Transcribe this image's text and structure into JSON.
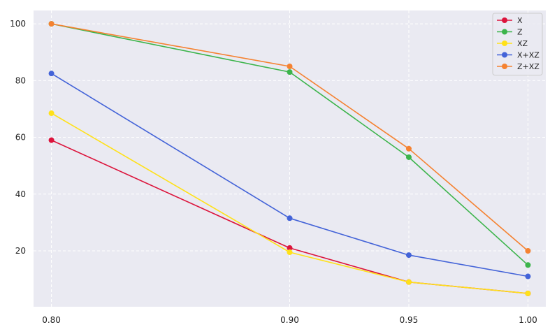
{
  "chart_data": {
    "type": "line",
    "title": "",
    "xlabel": "",
    "ylabel": "",
    "x": [
      0.8,
      0.9,
      0.95,
      1.0
    ],
    "x_tick_labels": [
      "0.80",
      "0.90",
      "0.95",
      "1.00"
    ],
    "xlim": [
      0.7925,
      1.0075
    ],
    "y_ticks": [
      20,
      40,
      60,
      80,
      100
    ],
    "y_tick_labels": [
      "20",
      "40",
      "60",
      "80",
      "100"
    ],
    "ylim": [
      0.3,
      104.7
    ],
    "grid": true,
    "grid_style": "dashed",
    "legend_position": "top-right",
    "background_color": "#eaeaf2",
    "series": [
      {
        "name": "X",
        "color": "#dc143c",
        "values": [
          59,
          21,
          9,
          5
        ]
      },
      {
        "name": "Z",
        "color": "#3cb44b",
        "values": [
          100,
          83,
          53,
          15
        ]
      },
      {
        "name": "XZ",
        "color": "#ffe119",
        "values": [
          68.5,
          19.5,
          9,
          5
        ]
      },
      {
        "name": "X+XZ",
        "color": "#4363d8",
        "values": [
          82.5,
          31.5,
          18.5,
          11
        ]
      },
      {
        "name": "Z+XZ",
        "color": "#f58231",
        "values": [
          100,
          85,
          56,
          20
        ]
      }
    ]
  }
}
